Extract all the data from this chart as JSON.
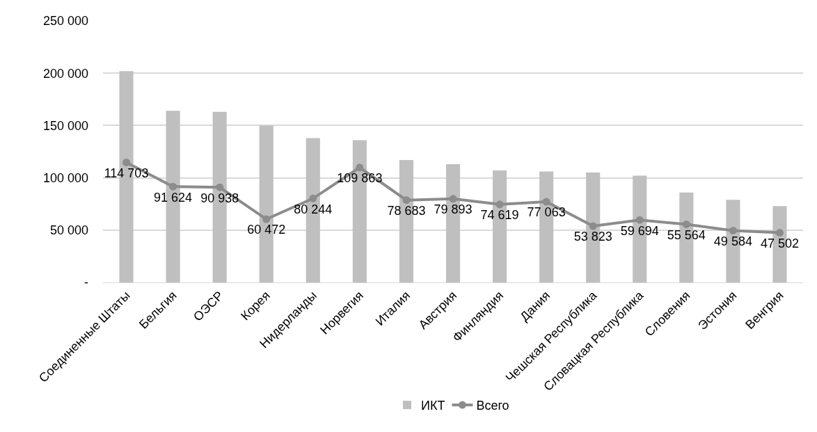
{
  "chart_data": {
    "type": "bar",
    "categories": [
      "Соединенные Штаты",
      "Бельгия",
      "ОЭСР",
      "Корея",
      "Нидерланды",
      "Норвегия",
      "Италия",
      "Австрия",
      "Финляндия",
      "Дания",
      "Чешская Республика",
      "Словацкая Республика",
      "Словения",
      "Эстония",
      "Венгрия"
    ],
    "series": [
      {
        "name": "ИКТ",
        "color": "#bfbfbf",
        "values": [
          202000,
          164000,
          163000,
          150000,
          138000,
          136000,
          117000,
          113000,
          107000,
          106000,
          105000,
          102000,
          86000,
          79000,
          73000
        ]
      },
      {
        "name": "Всего",
        "type": "line",
        "color": "#8c8c8c",
        "data_labels": true,
        "values": [
          114703,
          91624,
          90938,
          60472,
          80244,
          109863,
          78683,
          79893,
          74619,
          77063,
          53823,
          59694,
          55564,
          49584,
          47502
        ]
      }
    ],
    "ylim": [
      0,
      250000
    ],
    "yticks": [
      {
        "value": 0,
        "label": "-"
      },
      {
        "value": 50000,
        "label": "50 000"
      },
      {
        "value": 100000,
        "label": "100 000"
      },
      {
        "value": 150000,
        "label": "150 000"
      },
      {
        "value": 200000,
        "label": "200 000"
      },
      {
        "value": 250000,
        "label": "250 000"
      }
    ],
    "grid": "y",
    "legend": "bottom",
    "marker": "circle",
    "line_style": "solid"
  }
}
